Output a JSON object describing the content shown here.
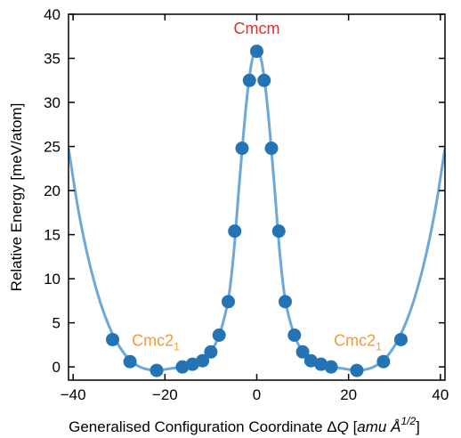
{
  "chart_data": {
    "type": "scatter",
    "xlabel": "Generalised Configuration Coordinate ΔQ [amu Å^1/2]",
    "xlabel_parts": {
      "plain": "Generalised Configuration Coordinate Δ",
      "q": "Q",
      "unit_open": " [",
      "unit_italic": "amu Å",
      "unit_sup": "1/2",
      "unit_close": "]"
    },
    "ylabel": "Relative Energy [meV/atom]",
    "xlim": [
      -41,
      41
    ],
    "ylim": [
      -1.5,
      40
    ],
    "x_ticks": [
      -40,
      -20,
      0,
      20,
      40
    ],
    "x_tick_labels": [
      "−40",
      "−20",
      "0",
      "20",
      "40"
    ],
    "y_ticks": [
      0,
      5,
      10,
      15,
      20,
      25,
      30,
      35,
      40
    ],
    "y_tick_labels": [
      "0",
      "5",
      "10",
      "15",
      "20",
      "25",
      "30",
      "35",
      "40"
    ],
    "grid": false,
    "legend": "none",
    "colors": {
      "curve": "#6fa8d6",
      "points": "#2474b5",
      "cmcm": "#e03131",
      "cmc21": "#f39a32"
    },
    "annotations": [
      {
        "text": "Cmcm",
        "x": 0,
        "y": 37.8,
        "color": "#e03131",
        "anchor": "middle"
      },
      {
        "text": "Cmc2",
        "sub": "1",
        "x": -22,
        "y": 2.4,
        "color": "#f39a32",
        "anchor": "middle"
      },
      {
        "text": "Cmc2",
        "sub": "1",
        "x": 22,
        "y": 2.4,
        "color": "#f39a32",
        "anchor": "middle"
      }
    ],
    "points": [
      {
        "x": -31.4,
        "y": 3.1
      },
      {
        "x": -27.6,
        "y": 0.6
      },
      {
        "x": -21.8,
        "y": -0.4
      },
      {
        "x": -16.2,
        "y": 0.0
      },
      {
        "x": -14.0,
        "y": 0.3
      },
      {
        "x": -11.8,
        "y": 0.7
      },
      {
        "x": -10.0,
        "y": 1.7
      },
      {
        "x": -8.2,
        "y": 3.6
      },
      {
        "x": -6.2,
        "y": 7.4
      },
      {
        "x": -4.8,
        "y": 15.4
      },
      {
        "x": -3.2,
        "y": 24.8
      },
      {
        "x": -1.6,
        "y": 32.5
      },
      {
        "x": 0.0,
        "y": 35.8
      },
      {
        "x": 1.6,
        "y": 32.5
      },
      {
        "x": 3.2,
        "y": 24.8
      },
      {
        "x": 4.8,
        "y": 15.4
      },
      {
        "x": 6.2,
        "y": 7.4
      },
      {
        "x": 8.2,
        "y": 3.6
      },
      {
        "x": 10.0,
        "y": 1.7
      },
      {
        "x": 11.8,
        "y": 0.7
      },
      {
        "x": 14.0,
        "y": 0.3
      },
      {
        "x": 16.2,
        "y": 0.0
      },
      {
        "x": 21.8,
        "y": -0.4
      },
      {
        "x": 27.6,
        "y": 0.6
      },
      {
        "x": 31.4,
        "y": 3.1
      }
    ],
    "fit_curve": [
      {
        "x": -41,
        "y": 24.8
      },
      {
        "x": -39,
        "y": 18.2
      },
      {
        "x": -37,
        "y": 13.0
      },
      {
        "x": -35,
        "y": 8.9
      },
      {
        "x": -33,
        "y": 5.7
      },
      {
        "x": -31,
        "y": 3.3
      },
      {
        "x": -29,
        "y": 1.6
      },
      {
        "x": -27,
        "y": 0.5
      },
      {
        "x": -25,
        "y": -0.1
      },
      {
        "x": -23,
        "y": -0.35
      },
      {
        "x": -21,
        "y": -0.35
      },
      {
        "x": -19,
        "y": -0.2
      },
      {
        "x": -17,
        "y": -0.05
      },
      {
        "x": -15,
        "y": 0.15
      },
      {
        "x": -13,
        "y": 0.45
      },
      {
        "x": -11,
        "y": 1.1
      },
      {
        "x": -10,
        "y": 1.7
      },
      {
        "x": -9,
        "y": 2.6
      },
      {
        "x": -8,
        "y": 3.9
      },
      {
        "x": -7,
        "y": 5.7
      },
      {
        "x": -6,
        "y": 8.3
      },
      {
        "x": -5,
        "y": 13.0
      },
      {
        "x": -4,
        "y": 19.5
      },
      {
        "x": -3,
        "y": 25.8
      },
      {
        "x": -2,
        "y": 31.2
      },
      {
        "x": -1,
        "y": 34.8
      },
      {
        "x": 0,
        "y": 36.0
      },
      {
        "x": 1,
        "y": 34.8
      },
      {
        "x": 2,
        "y": 31.2
      },
      {
        "x": 3,
        "y": 25.8
      },
      {
        "x": 4,
        "y": 19.5
      },
      {
        "x": 5,
        "y": 13.0
      },
      {
        "x": 6,
        "y": 8.3
      },
      {
        "x": 7,
        "y": 5.7
      },
      {
        "x": 8,
        "y": 3.9
      },
      {
        "x": 9,
        "y": 2.6
      },
      {
        "x": 10,
        "y": 1.7
      },
      {
        "x": 11,
        "y": 1.1
      },
      {
        "x": 13,
        "y": 0.45
      },
      {
        "x": 15,
        "y": 0.15
      },
      {
        "x": 17,
        "y": -0.05
      },
      {
        "x": 19,
        "y": -0.2
      },
      {
        "x": 21,
        "y": -0.35
      },
      {
        "x": 23,
        "y": -0.35
      },
      {
        "x": 25,
        "y": -0.1
      },
      {
        "x": 27,
        "y": 0.5
      },
      {
        "x": 29,
        "y": 1.6
      },
      {
        "x": 31,
        "y": 3.3
      },
      {
        "x": 33,
        "y": 5.7
      },
      {
        "x": 35,
        "y": 8.9
      },
      {
        "x": 37,
        "y": 13.0
      },
      {
        "x": 39,
        "y": 18.2
      },
      {
        "x": 41,
        "y": 24.8
      }
    ]
  }
}
